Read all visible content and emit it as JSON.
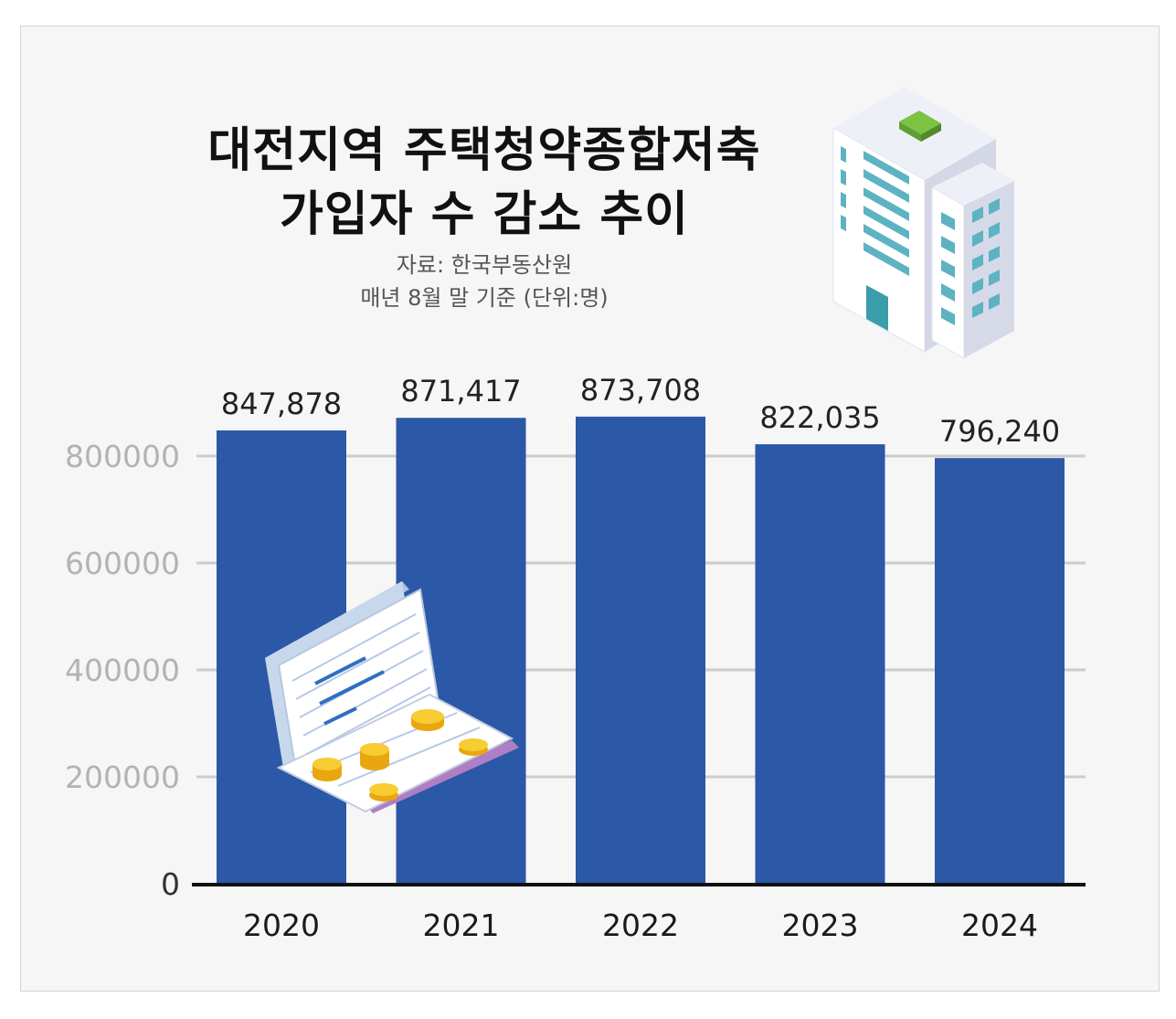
{
  "header": {
    "title_line1": "대전지역 주택청약종합저축",
    "title_line2": "가입자 수 감소 추이",
    "source": "자료: 한국부동산원",
    "note": "매년 8월 말 기준 (단위:명)"
  },
  "chart_data": {
    "type": "bar",
    "categories": [
      "2020",
      "2021",
      "2022",
      "2023",
      "2024"
    ],
    "values": [
      847878,
      871417,
      873708,
      822035,
      796240
    ],
    "data_labels": [
      "847,878",
      "871,417",
      "873,708",
      "822,035",
      "796,240"
    ],
    "yticks": [
      "0",
      "200000",
      "400000",
      "600000",
      "800000"
    ],
    "ylim": [
      0,
      800000
    ],
    "grid": true,
    "colors": {
      "bar": "#2b58a7",
      "grid": "#cccccc",
      "axis": "#111111"
    }
  },
  "icons": [
    "office-building-icon",
    "bankbook-coins-icon"
  ]
}
